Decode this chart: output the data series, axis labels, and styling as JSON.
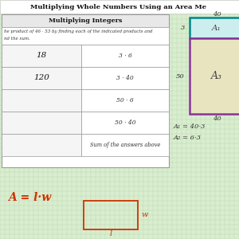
{
  "title": "Multiplying Whole Numbers Using an Area Me",
  "bg_color": "#d9edcf",
  "grid_color": "#bddab3",
  "table_title": "Multiplying Integers",
  "instruction_line1": "he product of 46 · 53 by finding each of the indicated products and",
  "instruction_line2": "nd the sum.",
  "rows": [
    {
      "left": "18",
      "right": "3 · 6"
    },
    {
      "left": "120",
      "right": "3 · 40"
    },
    {
      "left": "",
      "right": "50 · 6"
    },
    {
      "left": "",
      "right": "50 · 40"
    },
    {
      "left": "",
      "right": "Sum of the answers above"
    }
  ],
  "area_top_label": "40",
  "area_left_top": "3",
  "area_left_bot": "50",
  "area_A1_label": "A₁",
  "area_A3_label": "A₃",
  "area_bot_label": "40",
  "eq1": "A₁ = 40·3",
  "eq2": "A₂ = 6·3",
  "formula_text": "A = l·w",
  "teal_color": "#008888",
  "purple_color": "#883399",
  "table_border": "#999999",
  "handwrite_color": "#cc3300",
  "dark_red": "#cc3300"
}
